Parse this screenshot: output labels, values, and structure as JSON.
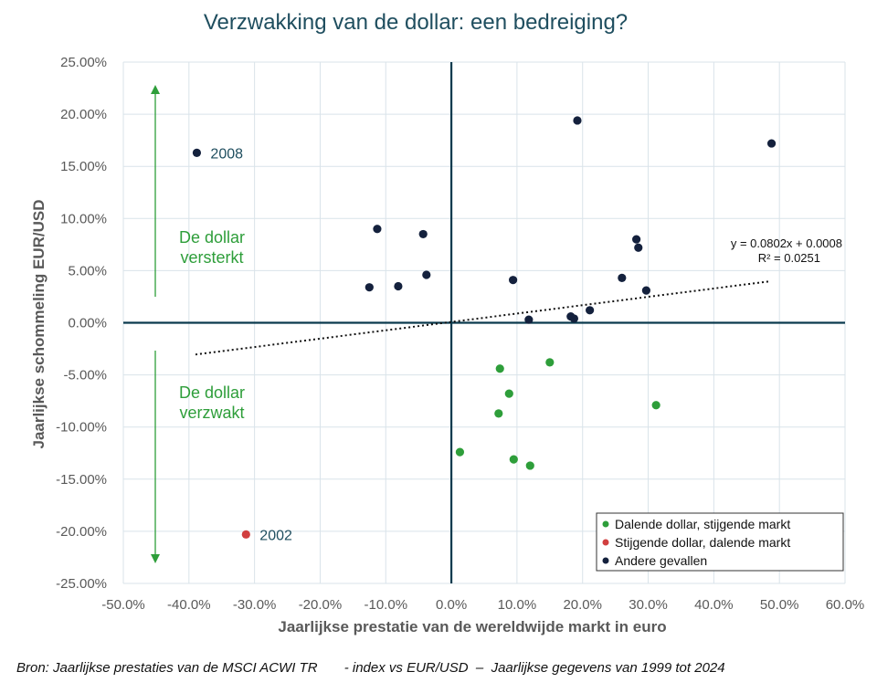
{
  "chart_data": {
    "type": "scatter",
    "title": "Verzwakking van de dollar: een bedreiging?",
    "xlabel": "Jaarlijkse prestatie van de wereldwijde markt in euro",
    "ylabel": "Jaarlijkse schommeling EUR/USD",
    "xlim": [
      -0.5,
      0.6
    ],
    "ylim": [
      -0.25,
      0.25
    ],
    "x_ticks": [
      -0.5,
      -0.4,
      -0.3,
      -0.2,
      -0.1,
      0.0,
      0.1,
      0.2,
      0.3,
      0.4,
      0.5,
      0.6
    ],
    "x_tick_labels": [
      "-50.0%",
      "-40.0%",
      "-30.0%",
      "-20.0%",
      "-10.0%",
      "0.0%",
      "10.0%",
      "20.0%",
      "30.0%",
      "40.0%",
      "50.0%",
      "60.0%"
    ],
    "y_ticks": [
      0.25,
      0.2,
      0.15,
      0.1,
      0.05,
      0.0,
      -0.05,
      -0.1,
      -0.15,
      -0.2,
      -0.25
    ],
    "y_tick_labels": [
      "25.00%",
      "20.00%",
      "15.00%",
      "10.00%",
      "5.00%",
      "0.00%",
      "-5.00%",
      "-10.00%",
      "-15.00%",
      "-20.00%",
      "-25.00%"
    ],
    "grid": true,
    "legend_position": "bottom-right",
    "series": [
      {
        "name": "Dalende dollar, stijgende markt",
        "color": "#2e9e3a",
        "points": [
          [
            0.074,
            -0.044
          ],
          [
            0.15,
            -0.038
          ],
          [
            0.088,
            -0.068
          ],
          [
            0.072,
            -0.087
          ],
          [
            0.312,
            -0.079
          ],
          [
            0.013,
            -0.124
          ],
          [
            0.095,
            -0.131
          ],
          [
            0.12,
            -0.137
          ]
        ]
      },
      {
        "name": "Stijgende dollar, dalende markt",
        "color": "#d13f3f",
        "points": [
          [
            -0.313,
            -0.203
          ]
        ]
      },
      {
        "name": "Andere gevallen",
        "color": "#14213d",
        "points": [
          [
            -0.388,
            0.163
          ],
          [
            0.192,
            0.194
          ],
          [
            0.488,
            0.172
          ],
          [
            -0.113,
            0.09
          ],
          [
            -0.043,
            0.085
          ],
          [
            0.282,
            0.08
          ],
          [
            0.285,
            0.072
          ],
          [
            -0.038,
            0.046
          ],
          [
            0.094,
            0.041
          ],
          [
            0.26,
            0.043
          ],
          [
            -0.125,
            0.034
          ],
          [
            -0.081,
            0.035
          ],
          [
            0.297,
            0.031
          ],
          [
            0.211,
            0.012
          ],
          [
            0.182,
            0.006
          ],
          [
            0.187,
            0.004
          ],
          [
            0.118,
            0.003
          ]
        ]
      }
    ],
    "trendline": {
      "slope": 0.0802,
      "intercept": 0.0008,
      "x_range": [
        -0.39,
        0.485
      ],
      "equation": "y = 0.0802x + 0.0008",
      "r_squared": "R² = 0.0251"
    },
    "point_labels": [
      {
        "text": "2008",
        "x": -0.388,
        "y": 0.163
      },
      {
        "text": "2002",
        "x": -0.313,
        "y": -0.203
      }
    ],
    "annotations": {
      "up_line1": "De dollar",
      "up_line2": "versterkt",
      "down_line1": "De dollar",
      "down_line2": "verzwakt",
      "arrow_color": "#2e9e3a",
      "axis_color": "#0b3a4e"
    }
  },
  "source": "Bron: Jaarlijkse prestaties van de MSCI ACWI TR       - index vs EUR/USD  –  Jaarlijkse gegevens van 1999 tot 2024"
}
